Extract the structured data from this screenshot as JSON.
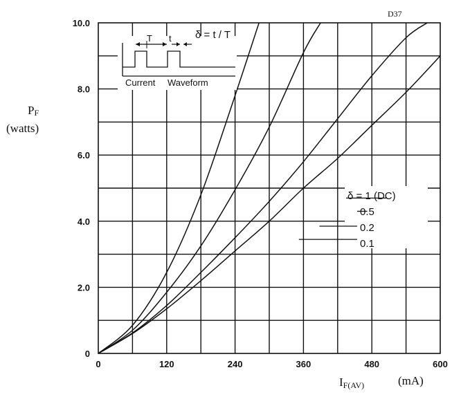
{
  "chart_data": {
    "type": "line",
    "figure_id": "D37",
    "xlabel_main": "I",
    "xlabel_sub": "F(AV)",
    "xlabel_unit": "(mA)",
    "ylabel_main": "P",
    "ylabel_sub": "F",
    "ylabel_unit": "(watts)",
    "xlim": [
      0,
      600
    ],
    "ylim": [
      0,
      10
    ],
    "x_ticks": [
      0,
      120,
      240,
      360,
      480,
      600
    ],
    "x_tick_labels": [
      "0",
      "120",
      "240",
      "360",
      "480",
      "600"
    ],
    "y_ticks": [
      0,
      2,
      4,
      6,
      8,
      10
    ],
    "y_tick_labels": [
      "0",
      "2.0",
      "4.0",
      "6.0",
      "8.0",
      "10.0"
    ],
    "grid": true,
    "series": [
      {
        "name": "δ = 1 (DC)",
        "x": [
          0,
          60,
          120,
          180,
          240,
          300,
          360,
          420,
          480,
          540,
          600
        ],
        "y": [
          0,
          0.6,
          1.35,
          2.2,
          3.1,
          4.0,
          5.0,
          5.9,
          6.9,
          7.9,
          9.0
        ]
      },
      {
        "name": "0.5",
        "x": [
          0,
          60,
          120,
          180,
          240,
          300,
          360,
          420,
          480,
          540,
          577
        ],
        "y": [
          0,
          0.62,
          1.45,
          2.45,
          3.5,
          4.6,
          5.8,
          7.1,
          8.4,
          9.55,
          10.0
        ]
      },
      {
        "name": "0.2",
        "x": [
          0,
          60,
          120,
          180,
          240,
          300,
          360,
          390
        ],
        "y": [
          0,
          0.7,
          1.85,
          3.25,
          4.95,
          6.85,
          9.1,
          10.0
        ]
      },
      {
        "name": "0.1",
        "x": [
          0,
          60,
          120,
          180,
          240,
          282
        ],
        "y": [
          0,
          0.85,
          2.45,
          4.8,
          7.8,
          10.0
        ]
      }
    ],
    "legend": {
      "placement": "right-middle",
      "entries": [
        "δ = 1 (DC)",
        "0.5",
        "0.2",
        "0.1"
      ],
      "series_x": [
        506,
        472,
        388,
        352
      ],
      "series_y": [
        4.7,
        4.3,
        3.85,
        3.45
      ]
    },
    "inset": {
      "label_T": "T",
      "label_t": "t",
      "formula": "δ = t / T",
      "caption_current": "Current",
      "caption_waveform": "Waveform"
    }
  }
}
